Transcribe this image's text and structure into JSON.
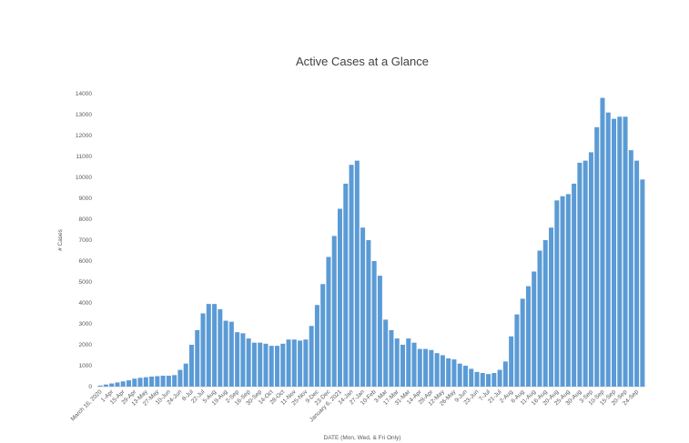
{
  "chart_data": {
    "type": "bar",
    "title": "Active Cases at a Glance",
    "x_label": "DATE  (Mon, Wed, & Fri Only)",
    "y_label": "# Cases",
    "color": "#5b9bd5",
    "ylim": [
      0,
      14000
    ],
    "yticks": [
      0,
      1000,
      2000,
      3000,
      4000,
      5000,
      6000,
      7000,
      8000,
      9000,
      10000,
      11000,
      12000,
      13000,
      14000
    ],
    "categories": [
      "March 16, 2020",
      null,
      "1-Apr",
      null,
      "15-Apr",
      null,
      "29-Apr",
      null,
      "13-May",
      null,
      "27-May",
      null,
      "10-Jun",
      null,
      "24-Jun",
      null,
      "8-Jul",
      null,
      "22-Jul",
      null,
      "5-Aug",
      null,
      "19-Aug",
      null,
      "2-Sep",
      null,
      "16-Sep",
      null,
      "30-Sep",
      null,
      "14-Oct",
      null,
      "28-Oct",
      null,
      "11-Nov",
      null,
      "25-Nov",
      null,
      "9-Dec",
      null,
      "23-Dec",
      null,
      "January 6, 2021",
      null,
      "14-Jan",
      null,
      "27-Jan",
      null,
      "10-Feb",
      null,
      "3-Mar",
      null,
      "17-Mar",
      null,
      "31-Mar",
      null,
      "14-Apr",
      null,
      "28-Apr",
      null,
      "12-May",
      null,
      "26-May",
      null,
      "9-Jun",
      null,
      "23-Jun",
      null,
      "7-Jul",
      null,
      "21-Jul",
      null,
      "2-Aug",
      null,
      "6-Aug",
      null,
      "11-Aug",
      null,
      "16-Aug",
      null,
      "20-Aug",
      null,
      "25-Aug",
      null,
      "30-Aug",
      null,
      "3-Sep",
      null,
      "10-Sep",
      null,
      "15-Sep",
      null,
      "20-Sep",
      null,
      "24-Sep",
      null
    ],
    "values": [
      50,
      100,
      150,
      200,
      250,
      300,
      380,
      420,
      450,
      480,
      500,
      520,
      520,
      550,
      800,
      1100,
      2000,
      2700,
      3500,
      3950,
      3950,
      3700,
      3150,
      3100,
      2600,
      2550,
      2300,
      2100,
      2100,
      2050,
      1950,
      1950,
      2050,
      2250,
      2250,
      2200,
      2250,
      2900,
      3900,
      4900,
      6200,
      7200,
      8500,
      9700,
      10600,
      10800,
      7600,
      7000,
      6000,
      5300,
      3200,
      2700,
      2300,
      2000,
      2300,
      2100,
      1800,
      1800,
      1750,
      1600,
      1500,
      1350,
      1300,
      1100,
      1000,
      850,
      700,
      650,
      600,
      650,
      800,
      1200,
      2400,
      3450,
      4200,
      4800,
      5500,
      6500,
      7000,
      7600,
      8900,
      9100,
      9200,
      9700,
      10700,
      10800,
      11200,
      12400,
      13800,
      13100,
      12800,
      12900,
      12900,
      11300,
      10800,
      9900
    ]
  }
}
